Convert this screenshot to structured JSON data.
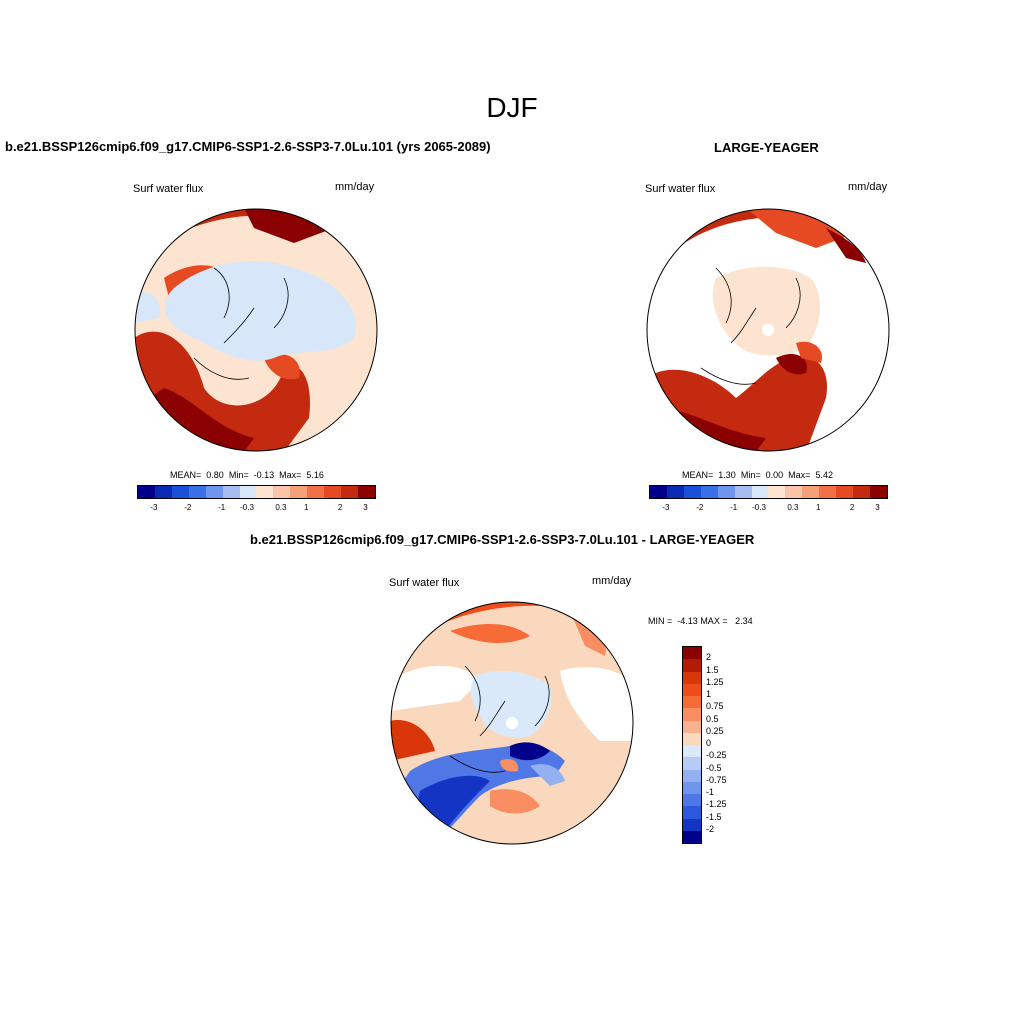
{
  "figure": {
    "season_title": "DJF"
  },
  "panels": {
    "case1": {
      "title": "b.e21.BSSP126cmip6.f09_g17.CMIP6-SSP1-2.6-SSP3-7.0Lu.101 (yrs 2065-2089)",
      "variable": "Surf water flux",
      "units": "mm/day",
      "stats": {
        "mean_label": "MEAN=",
        "mean": "0.80",
        "min_label": "Min=",
        "min": "-0.13",
        "max_label": "Max=",
        "max": "5.16"
      }
    },
    "case2": {
      "title": "LARGE-YEAGER",
      "variable": "Surf water flux",
      "units": "mm/day",
      "stats": {
        "mean_label": "MEAN=",
        "mean": "1.30",
        "min_label": "Min=",
        "min": "0.00",
        "max_label": "Max=",
        "max": "5.42"
      }
    },
    "diff": {
      "title": "b.e21.BSSP126cmip6.f09_g17.CMIP6-SSP1-2.6-SSP3-7.0Lu.101 - LARGE-YEAGER",
      "variable": "Surf water flux",
      "units": "mm/day",
      "stats": {
        "min_label": "MIN =",
        "min": "-4.13",
        "max_label": "MAX =",
        "max": "2.34"
      }
    }
  },
  "colorbars": {
    "field": {
      "colors": [
        "#00008b",
        "#0a2ab4",
        "#1a4fd8",
        "#3a6fe6",
        "#6f95ee",
        "#a7bdf2",
        "#d8e6f9",
        "#fce4d0",
        "#f9c5a6",
        "#f6a07a",
        "#f27048",
        "#e54a23",
        "#c42a10",
        "#8b0000"
      ],
      "tick_labels": [
        "-3",
        "-2",
        "-1",
        "-0.3",
        "0.3",
        "1",
        "2",
        "3"
      ]
    },
    "diff": {
      "colors": [
        "#8b0000",
        "#b51a05",
        "#d9360a",
        "#ef4c1c",
        "#f66b36",
        "#f88e62",
        "#f9b28f",
        "#fad8bd",
        "#dae9fa",
        "#b6ccf6",
        "#95b0f1",
        "#7095ec",
        "#4f78e6",
        "#2c58dc",
        "#1435c4",
        "#00008b"
      ],
      "labels": [
        "2",
        "1.5",
        "1.25",
        "1",
        "0.75",
        "0.5",
        "0.25",
        "0",
        "-0.25",
        "-0.5",
        "-0.75",
        "-1",
        "-1.25",
        "-1.5",
        "-2"
      ]
    }
  }
}
